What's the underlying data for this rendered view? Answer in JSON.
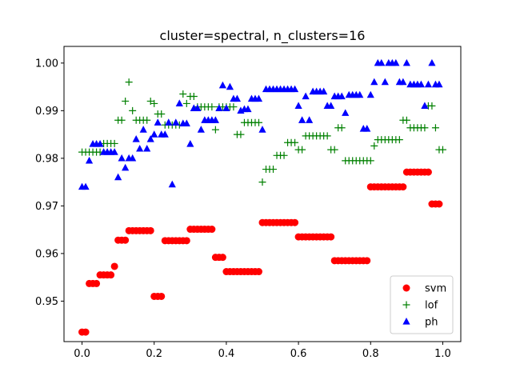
{
  "chart_data": {
    "type": "scatter",
    "title": "cluster=spectral, n_clusters=16",
    "xlabel": "",
    "ylabel": "",
    "xlim": [
      -0.05,
      1.05
    ],
    "ylim": [
      0.9415,
      1.0035
    ],
    "x_ticks": [
      0.0,
      0.2,
      0.4,
      0.6,
      0.8,
      1.0
    ],
    "x_tick_labels": [
      "0.0",
      "0.2",
      "0.4",
      "0.6",
      "0.8",
      "1.0"
    ],
    "y_ticks": [
      0.95,
      0.96,
      0.97,
      0.98,
      0.99,
      1.0
    ],
    "y_tick_labels": [
      "0.95",
      "0.96",
      "0.97",
      "0.98",
      "0.99",
      "1.00"
    ],
    "grid": false,
    "legend": {
      "position": "lower right"
    },
    "series": [
      {
        "name": "svm",
        "marker": "circle",
        "color": "#ff0000",
        "points": [
          [
            0.0,
            0.9435
          ],
          [
            0.01,
            0.9435
          ],
          [
            0.02,
            0.9537
          ],
          [
            0.03,
            0.9537
          ],
          [
            0.04,
            0.9537
          ],
          [
            0.05,
            0.9555
          ],
          [
            0.06,
            0.9555
          ],
          [
            0.07,
            0.9555
          ],
          [
            0.08,
            0.9555
          ],
          [
            0.09,
            0.9573
          ],
          [
            0.1,
            0.9628
          ],
          [
            0.11,
            0.9628
          ],
          [
            0.12,
            0.9628
          ],
          [
            0.13,
            0.9648
          ],
          [
            0.14,
            0.9648
          ],
          [
            0.15,
            0.9648
          ],
          [
            0.16,
            0.9648
          ],
          [
            0.17,
            0.9648
          ],
          [
            0.18,
            0.9648
          ],
          [
            0.19,
            0.9648
          ],
          [
            0.2,
            0.951
          ],
          [
            0.21,
            0.951
          ],
          [
            0.22,
            0.951
          ],
          [
            0.23,
            0.9627
          ],
          [
            0.24,
            0.9627
          ],
          [
            0.25,
            0.9627
          ],
          [
            0.26,
            0.9627
          ],
          [
            0.27,
            0.9627
          ],
          [
            0.28,
            0.9627
          ],
          [
            0.29,
            0.9627
          ],
          [
            0.3,
            0.9651
          ],
          [
            0.31,
            0.9651
          ],
          [
            0.32,
            0.9651
          ],
          [
            0.33,
            0.9651
          ],
          [
            0.34,
            0.9651
          ],
          [
            0.35,
            0.9651
          ],
          [
            0.36,
            0.9651
          ],
          [
            0.37,
            0.9592
          ],
          [
            0.38,
            0.9592
          ],
          [
            0.39,
            0.9592
          ],
          [
            0.4,
            0.9562
          ],
          [
            0.41,
            0.9562
          ],
          [
            0.42,
            0.9562
          ],
          [
            0.43,
            0.9562
          ],
          [
            0.44,
            0.9562
          ],
          [
            0.45,
            0.9562
          ],
          [
            0.46,
            0.9562
          ],
          [
            0.47,
            0.9562
          ],
          [
            0.48,
            0.9562
          ],
          [
            0.49,
            0.9562
          ],
          [
            0.5,
            0.9665
          ],
          [
            0.51,
            0.9665
          ],
          [
            0.52,
            0.9665
          ],
          [
            0.53,
            0.9665
          ],
          [
            0.54,
            0.9665
          ],
          [
            0.55,
            0.9665
          ],
          [
            0.56,
            0.9665
          ],
          [
            0.57,
            0.9665
          ],
          [
            0.58,
            0.9665
          ],
          [
            0.59,
            0.9665
          ],
          [
            0.6,
            0.9635
          ],
          [
            0.61,
            0.9635
          ],
          [
            0.62,
            0.9635
          ],
          [
            0.63,
            0.9635
          ],
          [
            0.64,
            0.9635
          ],
          [
            0.65,
            0.9635
          ],
          [
            0.66,
            0.9635
          ],
          [
            0.67,
            0.9635
          ],
          [
            0.68,
            0.9635
          ],
          [
            0.69,
            0.9635
          ],
          [
            0.7,
            0.9585
          ],
          [
            0.71,
            0.9585
          ],
          [
            0.72,
            0.9585
          ],
          [
            0.73,
            0.9585
          ],
          [
            0.74,
            0.9585
          ],
          [
            0.75,
            0.9585
          ],
          [
            0.76,
            0.9585
          ],
          [
            0.77,
            0.9585
          ],
          [
            0.78,
            0.9585
          ],
          [
            0.79,
            0.9585
          ],
          [
            0.8,
            0.974
          ],
          [
            0.81,
            0.974
          ],
          [
            0.82,
            0.974
          ],
          [
            0.83,
            0.974
          ],
          [
            0.84,
            0.974
          ],
          [
            0.85,
            0.974
          ],
          [
            0.86,
            0.974
          ],
          [
            0.87,
            0.974
          ],
          [
            0.88,
            0.974
          ],
          [
            0.89,
            0.974
          ],
          [
            0.9,
            0.9771
          ],
          [
            0.91,
            0.9771
          ],
          [
            0.92,
            0.9771
          ],
          [
            0.93,
            0.9771
          ],
          [
            0.94,
            0.9771
          ],
          [
            0.95,
            0.9771
          ],
          [
            0.96,
            0.9771
          ],
          [
            0.97,
            0.9704
          ],
          [
            0.98,
            0.9704
          ],
          [
            0.99,
            0.9704
          ]
        ]
      },
      {
        "name": "lof",
        "marker": "plus",
        "color": "#008000",
        "points": [
          [
            0.0,
            0.9813
          ],
          [
            0.01,
            0.9813
          ],
          [
            0.02,
            0.9813
          ],
          [
            0.03,
            0.9813
          ],
          [
            0.04,
            0.9813
          ],
          [
            0.05,
            0.9813
          ],
          [
            0.06,
            0.9831
          ],
          [
            0.07,
            0.9831
          ],
          [
            0.08,
            0.9831
          ],
          [
            0.09,
            0.9831
          ],
          [
            0.1,
            0.988
          ],
          [
            0.11,
            0.988
          ],
          [
            0.12,
            0.992
          ],
          [
            0.13,
            0.996
          ],
          [
            0.14,
            0.99
          ],
          [
            0.15,
            0.988
          ],
          [
            0.16,
            0.988
          ],
          [
            0.17,
            0.988
          ],
          [
            0.18,
            0.988
          ],
          [
            0.19,
            0.992
          ],
          [
            0.2,
            0.9915
          ],
          [
            0.21,
            0.9893
          ],
          [
            0.22,
            0.9893
          ],
          [
            0.23,
            0.987
          ],
          [
            0.24,
            0.987
          ],
          [
            0.25,
            0.987
          ],
          [
            0.26,
            0.987
          ],
          [
            0.27,
            0.987
          ],
          [
            0.28,
            0.9935
          ],
          [
            0.29,
            0.9915
          ],
          [
            0.3,
            0.993
          ],
          [
            0.31,
            0.993
          ],
          [
            0.32,
            0.9908
          ],
          [
            0.33,
            0.9908
          ],
          [
            0.34,
            0.9908
          ],
          [
            0.35,
            0.9908
          ],
          [
            0.36,
            0.9908
          ],
          [
            0.37,
            0.986
          ],
          [
            0.38,
            0.9908
          ],
          [
            0.39,
            0.9908
          ],
          [
            0.4,
            0.9908
          ],
          [
            0.41,
            0.9908
          ],
          [
            0.42,
            0.9908
          ],
          [
            0.43,
            0.985
          ],
          [
            0.44,
            0.985
          ],
          [
            0.45,
            0.9875
          ],
          [
            0.46,
            0.9875
          ],
          [
            0.47,
            0.9875
          ],
          [
            0.48,
            0.9875
          ],
          [
            0.49,
            0.9875
          ],
          [
            0.5,
            0.975
          ],
          [
            0.51,
            0.9777
          ],
          [
            0.52,
            0.9777
          ],
          [
            0.53,
            0.9777
          ],
          [
            0.54,
            0.9806
          ],
          [
            0.55,
            0.9806
          ],
          [
            0.56,
            0.9806
          ],
          [
            0.57,
            0.9833
          ],
          [
            0.58,
            0.9833
          ],
          [
            0.59,
            0.9833
          ],
          [
            0.6,
            0.9818
          ],
          [
            0.61,
            0.9818
          ],
          [
            0.62,
            0.9847
          ],
          [
            0.63,
            0.9847
          ],
          [
            0.64,
            0.9847
          ],
          [
            0.65,
            0.9847
          ],
          [
            0.66,
            0.9847
          ],
          [
            0.67,
            0.9847
          ],
          [
            0.68,
            0.9847
          ],
          [
            0.69,
            0.9818
          ],
          [
            0.7,
            0.9818
          ],
          [
            0.71,
            0.9864
          ],
          [
            0.72,
            0.9864
          ],
          [
            0.73,
            0.9795
          ],
          [
            0.74,
            0.9795
          ],
          [
            0.75,
            0.9795
          ],
          [
            0.76,
            0.9795
          ],
          [
            0.77,
            0.9795
          ],
          [
            0.78,
            0.9795
          ],
          [
            0.79,
            0.9795
          ],
          [
            0.8,
            0.9795
          ],
          [
            0.81,
            0.9826
          ],
          [
            0.82,
            0.9839
          ],
          [
            0.83,
            0.9839
          ],
          [
            0.84,
            0.9839
          ],
          [
            0.85,
            0.9839
          ],
          [
            0.86,
            0.9839
          ],
          [
            0.87,
            0.9839
          ],
          [
            0.88,
            0.9839
          ],
          [
            0.89,
            0.988
          ],
          [
            0.9,
            0.988
          ],
          [
            0.91,
            0.9864
          ],
          [
            0.92,
            0.9864
          ],
          [
            0.93,
            0.9864
          ],
          [
            0.94,
            0.9864
          ],
          [
            0.95,
            0.9864
          ],
          [
            0.96,
            0.991
          ],
          [
            0.97,
            0.991
          ],
          [
            0.98,
            0.9864
          ],
          [
            0.99,
            0.9818
          ],
          [
            1.0,
            0.9818
          ]
        ]
      },
      {
        "name": "ph",
        "marker": "triangle",
        "color": "#0000ff",
        "points": [
          [
            0.0,
            0.974
          ],
          [
            0.01,
            0.974
          ],
          [
            0.02,
            0.9795
          ],
          [
            0.03,
            0.983
          ],
          [
            0.04,
            0.983
          ],
          [
            0.05,
            0.983
          ],
          [
            0.06,
            0.9813
          ],
          [
            0.07,
            0.9813
          ],
          [
            0.08,
            0.9813
          ],
          [
            0.09,
            0.9813
          ],
          [
            0.1,
            0.976
          ],
          [
            0.11,
            0.98
          ],
          [
            0.12,
            0.978
          ],
          [
            0.13,
            0.98
          ],
          [
            0.14,
            0.98
          ],
          [
            0.15,
            0.984
          ],
          [
            0.16,
            0.982
          ],
          [
            0.17,
            0.986
          ],
          [
            0.18,
            0.982
          ],
          [
            0.19,
            0.984
          ],
          [
            0.2,
            0.985
          ],
          [
            0.21,
            0.9875
          ],
          [
            0.22,
            0.985
          ],
          [
            0.23,
            0.985
          ],
          [
            0.24,
            0.9875
          ],
          [
            0.25,
            0.9745
          ],
          [
            0.26,
            0.9875
          ],
          [
            0.27,
            0.9915
          ],
          [
            0.28,
            0.9873
          ],
          [
            0.29,
            0.9873
          ],
          [
            0.3,
            0.983
          ],
          [
            0.31,
            0.9905
          ],
          [
            0.32,
            0.9905
          ],
          [
            0.33,
            0.986
          ],
          [
            0.34,
            0.988
          ],
          [
            0.35,
            0.988
          ],
          [
            0.36,
            0.988
          ],
          [
            0.37,
            0.988
          ],
          [
            0.38,
            0.9905
          ],
          [
            0.39,
            0.9953
          ],
          [
            0.4,
            0.9905
          ],
          [
            0.41,
            0.995
          ],
          [
            0.42,
            0.9925
          ],
          [
            0.43,
            0.9925
          ],
          [
            0.44,
            0.99
          ],
          [
            0.45,
            0.9903
          ],
          [
            0.46,
            0.9903
          ],
          [
            0.47,
            0.9925
          ],
          [
            0.48,
            0.9925
          ],
          [
            0.49,
            0.9925
          ],
          [
            0.5,
            0.986
          ],
          [
            0.51,
            0.9945
          ],
          [
            0.52,
            0.9945
          ],
          [
            0.53,
            0.9945
          ],
          [
            0.54,
            0.9945
          ],
          [
            0.55,
            0.9945
          ],
          [
            0.56,
            0.9945
          ],
          [
            0.57,
            0.9945
          ],
          [
            0.58,
            0.9945
          ],
          [
            0.59,
            0.9945
          ],
          [
            0.6,
            0.991
          ],
          [
            0.61,
            0.988
          ],
          [
            0.62,
            0.993
          ],
          [
            0.63,
            0.988
          ],
          [
            0.64,
            0.994
          ],
          [
            0.65,
            0.994
          ],
          [
            0.66,
            0.994
          ],
          [
            0.67,
            0.994
          ],
          [
            0.68,
            0.991
          ],
          [
            0.69,
            0.991
          ],
          [
            0.7,
            0.993
          ],
          [
            0.71,
            0.993
          ],
          [
            0.72,
            0.993
          ],
          [
            0.73,
            0.9895
          ],
          [
            0.74,
            0.9933
          ],
          [
            0.75,
            0.9933
          ],
          [
            0.76,
            0.9933
          ],
          [
            0.77,
            0.9933
          ],
          [
            0.78,
            0.9862
          ],
          [
            0.79,
            0.9862
          ],
          [
            0.8,
            0.9933
          ],
          [
            0.81,
            0.996
          ],
          [
            0.82,
            1.0
          ],
          [
            0.83,
            1.0
          ],
          [
            0.84,
            0.996
          ],
          [
            0.85,
            1.0
          ],
          [
            0.86,
            1.0
          ],
          [
            0.87,
            1.0
          ],
          [
            0.88,
            0.996
          ],
          [
            0.89,
            0.996
          ],
          [
            0.9,
            1.0
          ],
          [
            0.91,
            0.9955
          ],
          [
            0.92,
            0.9955
          ],
          [
            0.93,
            0.9955
          ],
          [
            0.94,
            0.9955
          ],
          [
            0.95,
            0.991
          ],
          [
            0.96,
            0.9955
          ],
          [
            0.97,
            1.0
          ],
          [
            0.98,
            0.9955
          ],
          [
            0.99,
            0.9955
          ]
        ]
      }
    ]
  }
}
